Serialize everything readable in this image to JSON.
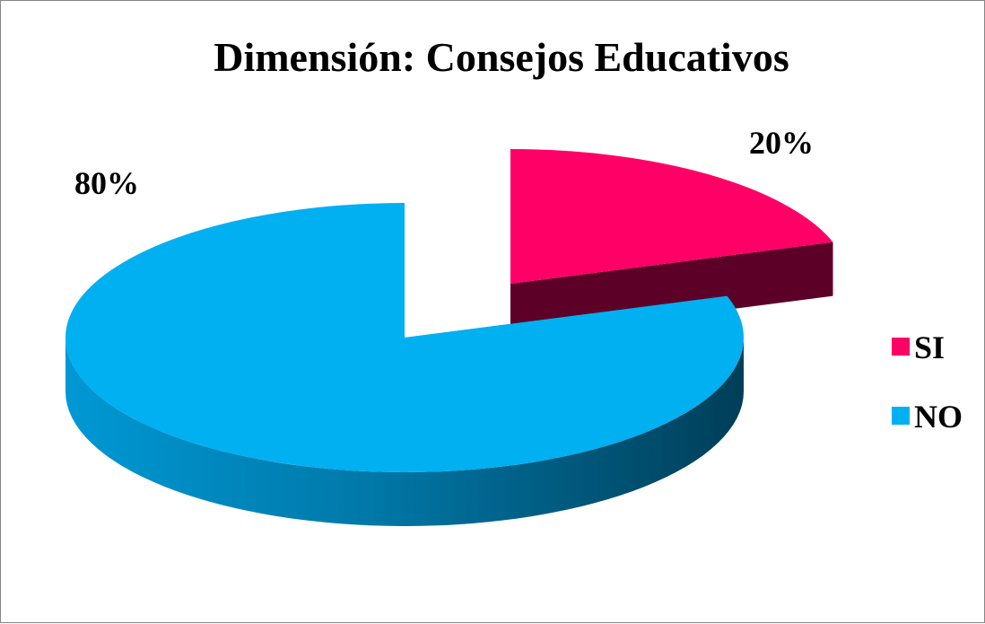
{
  "chart_data": {
    "type": "pie",
    "title": "Dimensión: Consejos Educativos",
    "categories": [
      "SI",
      "NO"
    ],
    "values": [
      20,
      80
    ],
    "data_labels": [
      "20%",
      "80%"
    ],
    "colors": [
      "#ff0066",
      "#00b0f0"
    ],
    "style": "3d-exploded",
    "legend": {
      "position": "right",
      "items": [
        {
          "label": "SI",
          "color": "#ff0066"
        },
        {
          "label": "NO",
          "color": "#00b0f0"
        }
      ]
    }
  }
}
